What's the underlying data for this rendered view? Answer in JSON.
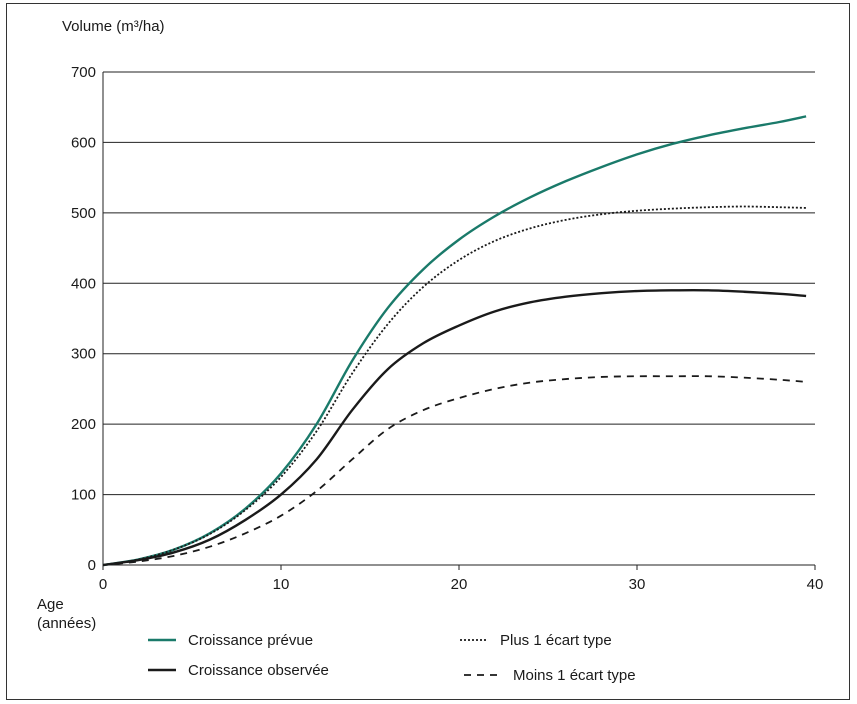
{
  "chart_data": {
    "type": "line",
    "ylabel": "Volume (m³/ha)",
    "xlabel": [
      "Age",
      "(années)"
    ],
    "xlim": [
      0,
      40
    ],
    "ylim": [
      0,
      700
    ],
    "xticks": [
      0,
      10,
      20,
      30,
      40
    ],
    "yticks": [
      0,
      100,
      200,
      300,
      400,
      500,
      600,
      700
    ],
    "grid": "horizontal",
    "legend_position": "bottom",
    "series": [
      {
        "name": "Croissance prévue",
        "style": "solid",
        "color": "#1a7a6a",
        "x": [
          0,
          2,
          4,
          6,
          8,
          10,
          12,
          14,
          16,
          18,
          20,
          22,
          24,
          26,
          28,
          30,
          32,
          34,
          36,
          38,
          39.5
        ],
        "y": [
          0,
          8,
          22,
          45,
          80,
          130,
          200,
          290,
          365,
          420,
          462,
          495,
          522,
          545,
          565,
          583,
          598,
          610,
          620,
          629,
          637
        ]
      },
      {
        "name": "Plus 1 écart type",
        "style": "dotted",
        "color": "#1a1a1a",
        "x": [
          0,
          2,
          4,
          6,
          8,
          10,
          12,
          14,
          16,
          18,
          20,
          22,
          24,
          26,
          28,
          30,
          32,
          34,
          36,
          38,
          39.5
        ],
        "y": [
          0,
          8,
          22,
          44,
          78,
          125,
          190,
          272,
          342,
          395,
          433,
          460,
          478,
          490,
          498,
          503,
          506,
          508,
          509,
          508,
          507
        ]
      },
      {
        "name": "Croissance observée",
        "style": "solid",
        "color": "#1a1a1a",
        "x": [
          0,
          2,
          4,
          6,
          8,
          10,
          12,
          14,
          16,
          18,
          20,
          22,
          24,
          26,
          28,
          30,
          32,
          34,
          36,
          38,
          39.5
        ],
        "y": [
          0,
          7,
          18,
          36,
          64,
          100,
          150,
          220,
          278,
          315,
          340,
          360,
          373,
          381,
          386,
          389,
          390,
          390,
          388,
          385,
          382
        ]
      },
      {
        "name": "Moins 1 écart type",
        "style": "dashed",
        "color": "#1a1a1a",
        "x": [
          0,
          2,
          4,
          6,
          8,
          10,
          12,
          14,
          16,
          18,
          20,
          22,
          24,
          26,
          28,
          30,
          32,
          34,
          36,
          38,
          39.5
        ],
        "y": [
          0,
          5,
          13,
          26,
          45,
          70,
          105,
          150,
          193,
          220,
          237,
          250,
          259,
          264,
          267,
          268,
          268,
          268,
          266,
          263,
          260
        ]
      }
    ]
  }
}
